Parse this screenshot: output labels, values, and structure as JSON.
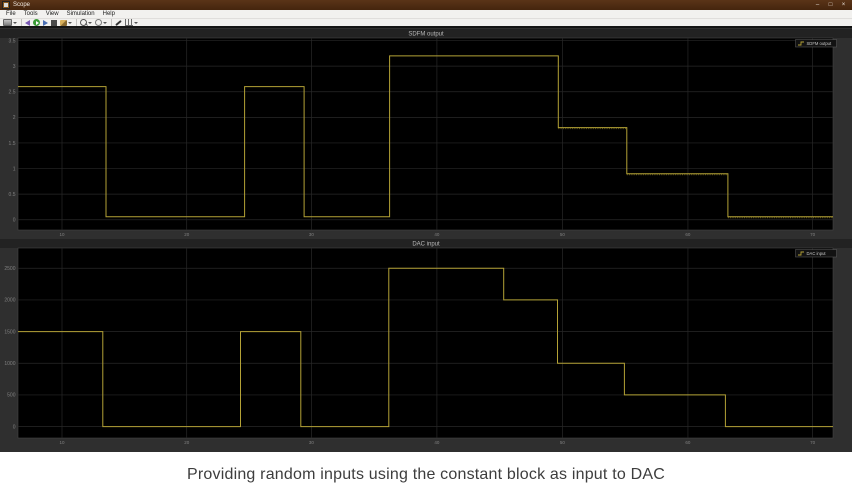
{
  "window": {
    "title": "Scope",
    "controls": {
      "minimize": "–",
      "maximize": "□",
      "close": "×"
    }
  },
  "menu": {
    "items": [
      "File",
      "Tools",
      "View",
      "Simulation",
      "Help"
    ]
  },
  "toolbar": {
    "items": [
      {
        "name": "printer",
        "dropdown": true
      },
      {
        "type": "separator"
      },
      {
        "name": "highlight-block",
        "dropdown": false
      },
      {
        "name": "run",
        "dropdown": false
      },
      {
        "name": "step-forward",
        "dropdown": false
      },
      {
        "name": "stop",
        "dropdown": false
      },
      {
        "name": "style-brush",
        "dropdown": true
      },
      {
        "type": "separator"
      },
      {
        "name": "zoom",
        "dropdown": true
      },
      {
        "name": "settings",
        "dropdown": true
      },
      {
        "type": "separator"
      },
      {
        "name": "measurements",
        "dropdown": false
      },
      {
        "name": "triggers",
        "dropdown": true
      }
    ]
  },
  "caption": {
    "text": "Providing random inputs using the constant block as input to DAC"
  },
  "colors": {
    "titlebar": "#4a2913",
    "scope_background": "#2f2f2f",
    "plot_background": "#000000",
    "gridline": "#282828",
    "tick_label": "#808080",
    "trace": "#b4a236",
    "panel_title": "#b9b9b9"
  },
  "chart_data": [
    {
      "type": "line",
      "title": "SDFM output",
      "legend": "SDFM output",
      "legend_position": "top-right",
      "line_color": "#b4a236",
      "grid": true,
      "ylim": [
        -0.2,
        3.55
      ],
      "yticks": [
        0,
        0.5,
        1,
        1.5,
        2,
        2.5,
        3,
        3.5
      ],
      "ytick_labels": [
        "0",
        "0.5",
        "1",
        "1.5",
        "2",
        "2.5",
        "3",
        "3.5"
      ],
      "xtick_percents": [
        5.4,
        20.7,
        36.0,
        51.4,
        66.8,
        82.2,
        97.5
      ],
      "xtick_labels": [
        "10",
        "20",
        "30",
        "40",
        "50",
        "60",
        "70"
      ],
      "step_edges_percent": [
        0,
        10.8,
        27.8,
        35.1,
        45.6,
        66.3,
        74.7,
        87.1,
        100
      ],
      "step_values": [
        2.6,
        0.06,
        2.6,
        0.06,
        3.2,
        1.8,
        0.9,
        0.06
      ],
      "noisy_segments": [
        5,
        6,
        7
      ]
    },
    {
      "type": "line",
      "title": "DAC input",
      "legend": "DAC input",
      "legend_position": "top-right",
      "line_color": "#b4a236",
      "grid": true,
      "ylim": [
        -180,
        2820
      ],
      "yticks": [
        0,
        500,
        1000,
        1500,
        2000,
        2500
      ],
      "ytick_labels": [
        "0",
        "500",
        "1000",
        "1500",
        "2000",
        "2500"
      ],
      "xtick_percents": [
        5.4,
        20.7,
        36.0,
        51.4,
        66.8,
        82.2,
        97.5
      ],
      "xtick_labels": [
        "10",
        "20",
        "30",
        "40",
        "50",
        "60",
        "70"
      ],
      "step_edges_percent": [
        0,
        10.4,
        27.3,
        34.7,
        45.5,
        59.6,
        66.2,
        74.4,
        86.8,
        100
      ],
      "step_values": [
        1500,
        0,
        1500,
        0,
        2500,
        2000,
        1000,
        500,
        0
      ],
      "noisy_segments": []
    }
  ]
}
